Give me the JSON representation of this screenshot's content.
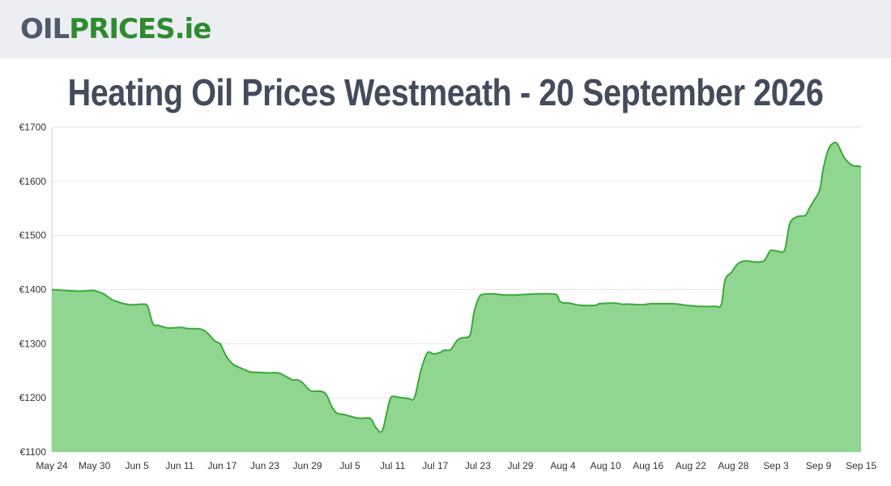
{
  "header": {
    "logo_oil": "OIL",
    "logo_prices": "PRICES.ie"
  },
  "page_title": "Heating Oil Prices Westmeath - 20 September 2026",
  "colors": {
    "line": "#3aa93a",
    "area": "#90d690",
    "grid": "#e6e6e6",
    "header_bg": "#eceef4",
    "title": "#434b5c"
  },
  "chart_data": {
    "type": "area",
    "title": "",
    "xlabel": "",
    "ylabel": "",
    "ylim": [
      1100,
      1700
    ],
    "y_ticks": [
      "€1100",
      "€1200",
      "€1300",
      "€1400",
      "€1500",
      "€1600",
      "€1700"
    ],
    "x_ticks": [
      "May 24",
      "May 30",
      "Jun 5",
      "Jun 11",
      "Jun 17",
      "Jun 23",
      "Jun 29",
      "Jul 5",
      "Jul 11",
      "Jul 17",
      "Jul 23",
      "Jul 29",
      "Aug 4",
      "Aug 10",
      "Aug 16",
      "Aug 22",
      "Aug 28",
      "Sep 3",
      "Sep 9",
      "Sep 15"
    ],
    "grid": true,
    "legend": "none",
    "series": [
      {
        "values": [
          [
            0,
            1400
          ],
          [
            2,
            1397
          ],
          [
            3,
            1398
          ],
          [
            3.3,
            1398
          ],
          [
            4,
            1392
          ],
          [
            4.6,
            1382
          ],
          [
            5,
            1378
          ],
          [
            6,
            1372
          ],
          [
            7,
            1373
          ],
          [
            7.4,
            1369
          ],
          [
            7.8,
            1337
          ],
          [
            8.2,
            1334
          ],
          [
            8.6,
            1331
          ],
          [
            9,
            1329
          ],
          [
            10,
            1330
          ],
          [
            10.5,
            1328
          ],
          [
            11.5,
            1327
          ],
          [
            12,
            1320
          ],
          [
            12.6,
            1305
          ],
          [
            13,
            1300
          ],
          [
            13.2,
            1290
          ],
          [
            13.5,
            1276
          ],
          [
            14,
            1262
          ],
          [
            14.6,
            1255
          ],
          [
            15.3,
            1248
          ],
          [
            16,
            1247
          ],
          [
            16.8,
            1246
          ],
          [
            17.5,
            1246
          ],
          [
            18.2,
            1238
          ],
          [
            18.6,
            1233
          ],
          [
            19,
            1233
          ],
          [
            19.4,
            1227
          ],
          [
            20,
            1213
          ],
          [
            20.8,
            1212
          ],
          [
            21.2,
            1206
          ],
          [
            21.6,
            1185
          ],
          [
            22,
            1172
          ],
          [
            22.6,
            1169
          ],
          [
            23.2,
            1165
          ],
          [
            23.8,
            1162
          ],
          [
            24.6,
            1162
          ],
          [
            25,
            1146
          ],
          [
            25.5,
            1138
          ],
          [
            25.9,
            1176
          ],
          [
            26.2,
            1201
          ],
          [
            26.8,
            1201
          ],
          [
            27.5,
            1199
          ],
          [
            28,
            1200
          ],
          [
            28.5,
            1250
          ],
          [
            29,
            1283
          ],
          [
            29.5,
            1281
          ],
          [
            30,
            1284
          ],
          [
            30.3,
            1288
          ],
          [
            30.8,
            1289
          ],
          [
            31.3,
            1306
          ],
          [
            31.7,
            1311
          ],
          [
            32.3,
            1316
          ],
          [
            32.6,
            1357
          ],
          [
            33,
            1386
          ],
          [
            33.3,
            1391
          ],
          [
            34,
            1392
          ],
          [
            35,
            1390
          ],
          [
            35.8,
            1390
          ],
          [
            36.5,
            1391
          ],
          [
            37.5,
            1392
          ],
          [
            38.5,
            1392
          ],
          [
            39,
            1390
          ],
          [
            39.3,
            1377
          ],
          [
            40,
            1375
          ],
          [
            40.8,
            1371
          ],
          [
            42,
            1371
          ],
          [
            42.3,
            1374
          ],
          [
            43.5,
            1375
          ],
          [
            44,
            1373
          ],
          [
            44.6,
            1373
          ],
          [
            45.6,
            1372
          ],
          [
            46.3,
            1374
          ],
          [
            47,
            1374
          ],
          [
            47.6,
            1374
          ],
          [
            48.4,
            1373
          ],
          [
            49,
            1371
          ],
          [
            50,
            1369
          ],
          [
            51.2,
            1369
          ],
          [
            51.7,
            1372
          ],
          [
            52,
            1418
          ],
          [
            52.5,
            1432
          ],
          [
            53,
            1448
          ],
          [
            53.6,
            1453
          ],
          [
            54.3,
            1451
          ],
          [
            55,
            1453
          ],
          [
            55.5,
            1472
          ],
          [
            56,
            1471
          ],
          [
            56.6,
            1473
          ],
          [
            57,
            1522
          ],
          [
            57.6,
            1535
          ],
          [
            58.2,
            1537
          ],
          [
            58.5,
            1550
          ],
          [
            58.8,
            1562
          ],
          [
            59.3,
            1584
          ],
          [
            59.6,
            1625
          ],
          [
            60,
            1660
          ],
          [
            60.4,
            1671
          ],
          [
            60.7,
            1668
          ],
          [
            61.2,
            1644
          ],
          [
            61.8,
            1630
          ],
          [
            62.3,
            1628
          ],
          [
            62.5,
            1627
          ]
        ]
      }
    ]
  }
}
